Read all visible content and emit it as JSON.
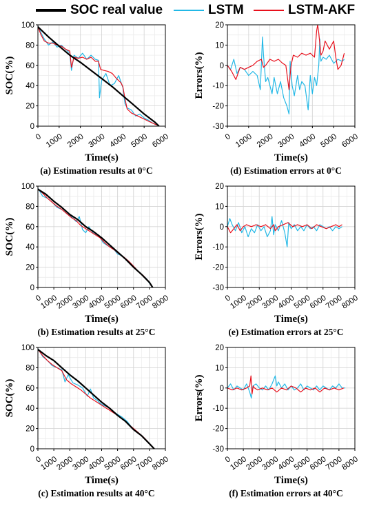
{
  "legend": {
    "items": [
      {
        "label": "SOC real value",
        "color": "#000000"
      },
      {
        "label": "LSTM",
        "color": "#22b8e6"
      },
      {
        "label": "LSTM-AKF",
        "color": "#e8101c"
      }
    ]
  },
  "chart_data": [
    {
      "type": "line",
      "panel": "soc",
      "xlabel": "Time(s)",
      "ylabel": "SOC(%)",
      "caption": "(a) Estimation results at 0°C",
      "xlim": [
        0,
        6000
      ],
      "ylim": [
        0,
        100
      ],
      "xticks": [
        0,
        1000,
        2000,
        3000,
        4000,
        5000,
        6000
      ],
      "yticks": [
        0,
        20,
        40,
        60,
        80,
        100
      ],
      "grid": true,
      "series": [
        {
          "name": "SOC real value",
          "x": [
            0,
            500,
            1000,
            1500,
            2000,
            2500,
            3000,
            3500,
            4000,
            4500,
            5000,
            5500,
            5700
          ],
          "y": [
            98,
            88,
            79,
            70,
            63,
            55,
            47,
            39,
            30,
            21,
            12,
            4,
            0
          ]
        },
        {
          "name": "LSTM",
          "x": [
            0,
            150,
            300,
            500,
            700,
            900,
            1100,
            1300,
            1500,
            1580,
            1700,
            1900,
            2100,
            2300,
            2500,
            2700,
            2850,
            2900,
            3000,
            3200,
            3400,
            3600,
            3800,
            4000,
            4100,
            4200,
            4400,
            4600,
            4800,
            5000,
            5200,
            5400,
            5600
          ],
          "y": [
            99,
            92,
            86,
            80,
            83,
            78,
            80,
            76,
            72,
            55,
            70,
            67,
            72,
            66,
            70,
            66,
            65,
            28,
            45,
            52,
            40,
            42,
            50,
            38,
            22,
            18,
            16,
            10,
            12,
            8,
            6,
            3,
            1
          ]
        },
        {
          "name": "LSTM-AKF",
          "x": [
            0,
            150,
            300,
            500,
            700,
            900,
            1100,
            1300,
            1500,
            1580,
            1700,
            1900,
            2100,
            2300,
            2500,
            2700,
            2850,
            2950,
            3100,
            3300,
            3500,
            3700,
            3900,
            4000,
            4100,
            4200,
            4400,
            4600,
            4800,
            5000,
            5200,
            5400,
            5600
          ],
          "y": [
            98,
            90,
            84,
            82,
            82,
            80,
            79,
            76,
            74,
            58,
            68,
            67,
            68,
            66,
            68,
            64,
            64,
            56,
            55,
            54,
            52,
            47,
            43,
            39,
            27,
            17,
            13,
            11,
            9,
            7,
            5,
            3,
            1
          ]
        }
      ]
    },
    {
      "type": "line",
      "panel": "err",
      "xlabel": "Time(s)",
      "ylabel": "Errors(%)",
      "caption": "(d) Estimation errors at 0°C",
      "xlim": [
        0,
        6000
      ],
      "ylim": [
        -30,
        20
      ],
      "xticks": [
        0,
        1000,
        2000,
        3000,
        4000,
        5000,
        6000
      ],
      "yticks": [
        -30,
        -20,
        -10,
        0,
        10,
        20
      ],
      "grid": true,
      "series": [
        {
          "name": "LSTM",
          "x": [
            0,
            150,
            300,
            450,
            600,
            800,
            1000,
            1200,
            1400,
            1550,
            1650,
            1700,
            1800,
            1900,
            2000,
            2100,
            2200,
            2350,
            2500,
            2650,
            2800,
            2900,
            2950,
            3050,
            3150,
            3300,
            3400,
            3500,
            3650,
            3800,
            3900,
            4000,
            4100,
            4200,
            4300,
            4350,
            4400,
            4500,
            4650,
            4800,
            5000,
            5200,
            5400,
            5500
          ],
          "y": [
            0,
            -2,
            3,
            -4,
            -1,
            -2,
            -5,
            -3,
            -5,
            -12,
            14,
            5,
            -8,
            -6,
            -10,
            -14,
            -6,
            -14,
            -8,
            -16,
            -20,
            -24,
            2,
            -10,
            -15,
            -5,
            -12,
            -8,
            -10,
            -22,
            -5,
            -14,
            -6,
            -10,
            0,
            13,
            2,
            4,
            3,
            5,
            1,
            3,
            2,
            3
          ]
        },
        {
          "name": "LSTM-AKF",
          "x": [
            0,
            200,
            400,
            600,
            800,
            1000,
            1200,
            1400,
            1600,
            1700,
            1800,
            2000,
            2200,
            2400,
            2600,
            2750,
            2850,
            2900,
            2950,
            3000,
            3100,
            3300,
            3500,
            3700,
            3900,
            4100,
            4200,
            4250,
            4300,
            4400,
            4500,
            4600,
            4800,
            5000,
            5100,
            5200,
            5350,
            5500
          ],
          "y": [
            0,
            -3,
            -7,
            -1,
            -2,
            -1,
            0,
            2,
            3,
            -1,
            0,
            3,
            2,
            3,
            1,
            0,
            -8,
            -12,
            -5,
            0,
            5,
            4,
            6,
            5,
            6,
            4,
            17,
            20,
            16,
            5,
            7,
            12,
            8,
            12,
            4,
            -2,
            0,
            6
          ]
        }
      ]
    },
    {
      "type": "line",
      "panel": "soc",
      "xlabel": "Time(s)",
      "ylabel": "SOC(%)",
      "caption": "(b) Estimation results at 25°C",
      "xlim": [
        0,
        8000
      ],
      "ylim": [
        0,
        100
      ],
      "xticks": [
        0,
        1000,
        2000,
        3000,
        4000,
        5000,
        6000,
        7000,
        8000
      ],
      "yticks": [
        0,
        20,
        40,
        60,
        80,
        100
      ],
      "grid": true,
      "series": [
        {
          "name": "SOC real value",
          "x": [
            0,
            500,
            1000,
            1500,
            2000,
            2500,
            3000,
            3500,
            4000,
            4500,
            5000,
            5500,
            6000,
            6500,
            7000,
            7200
          ],
          "y": [
            97,
            92,
            85,
            79,
            72,
            67,
            60,
            55,
            49,
            42,
            35,
            28,
            20,
            13,
            5,
            0
          ]
        },
        {
          "name": "LSTM",
          "x": [
            0,
            300,
            600,
            900,
            1200,
            1500,
            1800,
            2100,
            2400,
            2600,
            2800,
            3000,
            3200,
            3500,
            3800,
            4100,
            4400,
            4700,
            5000,
            5300,
            5600,
            5900,
            6200,
            6500,
            6800,
            7000,
            7200
          ],
          "y": [
            98,
            90,
            88,
            84,
            79,
            77,
            73,
            70,
            65,
            70,
            57,
            54,
            60,
            53,
            52,
            44,
            41,
            39,
            33,
            31,
            26,
            22,
            17,
            13,
            9,
            4,
            0
          ]
        },
        {
          "name": "LSTM-AKF",
          "x": [
            0,
            300,
            600,
            900,
            1200,
            1500,
            1800,
            2100,
            2400,
            2700,
            3000,
            3300,
            3600,
            3900,
            4200,
            4500,
            4800,
            5100,
            5400,
            5700,
            6000,
            6300,
            6600,
            6900,
            7100,
            7200
          ],
          "y": [
            97,
            93,
            88,
            84,
            80,
            77,
            73,
            69,
            66,
            61,
            58,
            55,
            52,
            49,
            44,
            40,
            37,
            33,
            30,
            26,
            21,
            16,
            12,
            7,
            2,
            0
          ]
        }
      ]
    },
    {
      "type": "line",
      "panel": "err",
      "xlabel": "Time(s)",
      "ylabel": "Errors(%)",
      "caption": "(e) Estimation errors at 25°C",
      "xlim": [
        0,
        8000
      ],
      "ylim": [
        -30,
        20
      ],
      "xticks": [
        0,
        1000,
        2000,
        3000,
        4000,
        5000,
        6000,
        7000,
        8000
      ],
      "yticks": [
        -30,
        -20,
        -10,
        0,
        10,
        20
      ],
      "grid": true,
      "series": [
        {
          "name": "LSTM",
          "x": [
            0,
            150,
            300,
            500,
            700,
            900,
            1100,
            1300,
            1500,
            1700,
            1900,
            2100,
            2300,
            2500,
            2700,
            2800,
            2900,
            3000,
            3200,
            3400,
            3600,
            3750,
            3850,
            4000,
            4200,
            4400,
            4600,
            4800,
            5000,
            5200,
            5400,
            5600,
            5800,
            6000,
            6200,
            6400,
            6600,
            6800,
            7000,
            7200
          ],
          "y": [
            0,
            4,
            1,
            -2,
            2,
            -3,
            0,
            -5,
            -1,
            -3,
            1,
            -2,
            0,
            -5,
            -2,
            5,
            -4,
            1,
            -2,
            3,
            -3,
            -10,
            2,
            -1,
            1,
            -2,
            0,
            -2,
            1,
            -1,
            0,
            -2,
            1,
            0,
            -1,
            0,
            -2,
            0,
            -1,
            0
          ]
        },
        {
          "name": "LSTM-AKF",
          "x": [
            0,
            200,
            400,
            600,
            800,
            1000,
            1200,
            1500,
            1800,
            2100,
            2400,
            2700,
            2900,
            3000,
            3200,
            3500,
            3800,
            4100,
            4400,
            4700,
            5000,
            5300,
            5600,
            5900,
            6200,
            6500,
            6800,
            7000,
            7200
          ],
          "y": [
            0,
            -3,
            -1,
            1,
            -2,
            0,
            1,
            0,
            1,
            0,
            1,
            -1,
            1,
            -2,
            0,
            1,
            2,
            0,
            1,
            0,
            1,
            -1,
            1,
            0,
            -1,
            0,
            1,
            0,
            1
          ]
        }
      ]
    },
    {
      "type": "line",
      "panel": "soc",
      "xlabel": "Time(s)",
      "ylabel": "SOC(%)",
      "caption": "(c) Estimation results at 40°C",
      "xlim": [
        0,
        8000
      ],
      "ylim": [
        0,
        100
      ],
      "xticks": [
        0,
        1000,
        2000,
        3000,
        4000,
        5000,
        6000,
        7000,
        8000
      ],
      "yticks": [
        0,
        20,
        40,
        60,
        80,
        100
      ],
      "grid": true,
      "series": [
        {
          "name": "SOC real value",
          "x": [
            0,
            500,
            1000,
            1500,
            2000,
            2500,
            3000,
            3500,
            4000,
            4500,
            5000,
            5500,
            6000,
            6500,
            7000,
            7300
          ],
          "y": [
            98,
            92,
            87,
            80,
            73,
            67,
            60,
            53,
            46,
            40,
            33,
            27,
            19,
            13,
            5,
            0
          ]
        },
        {
          "name": "LSTM",
          "x": [
            0,
            300,
            600,
            900,
            1200,
            1500,
            1700,
            1900,
            2200,
            2500,
            2800,
            3100,
            3300,
            3500,
            3700,
            3900,
            4100,
            4400,
            4700,
            5000,
            5300,
            5600,
            5900,
            6200,
            6500,
            6800,
            7100,
            7300
          ],
          "y": [
            99,
            91,
            87,
            82,
            80,
            78,
            66,
            73,
            65,
            63,
            60,
            52,
            59,
            50,
            48,
            45,
            43,
            41,
            37,
            34,
            31,
            27,
            21,
            17,
            13,
            8,
            3,
            0
          ]
        },
        {
          "name": "LSTM-AKF",
          "x": [
            0,
            300,
            600,
            900,
            1200,
            1500,
            1700,
            1800,
            2100,
            2400,
            2700,
            3000,
            3300,
            3600,
            3900,
            4200,
            4500,
            4800,
            5100,
            5400,
            5700,
            6000,
            6300,
            6600,
            6900,
            7100,
            7300
          ],
          "y": [
            98,
            92,
            87,
            83,
            80,
            77,
            71,
            68,
            64,
            61,
            58,
            54,
            50,
            47,
            44,
            41,
            38,
            35,
            32,
            28,
            24,
            20,
            16,
            12,
            7,
            3,
            0
          ]
        }
      ]
    },
    {
      "type": "line",
      "panel": "err",
      "xlabel": "Time(s)",
      "ylabel": "Errors(%)",
      "caption": "(f) Estimation errors at 40°C",
      "xlim": [
        0,
        8000
      ],
      "ylim": [
        -30,
        20
      ],
      "xticks": [
        0,
        1000,
        2000,
        3000,
        4000,
        5000,
        6000,
        7000,
        8000
      ],
      "yticks": [
        -30,
        -20,
        -10,
        0,
        10,
        20
      ],
      "grid": true,
      "series": [
        {
          "name": "LSTM",
          "x": [
            0,
            200,
            400,
            600,
            800,
            1000,
            1200,
            1400,
            1500,
            1600,
            1800,
            2000,
            2200,
            2400,
            2600,
            2800,
            3000,
            3100,
            3200,
            3400,
            3600,
            3800,
            4000,
            4200,
            4400,
            4600,
            4800,
            5000,
            5200,
            5400,
            5600,
            5800,
            6000,
            6200,
            6400,
            6600,
            6800,
            7000,
            7200,
            7400
          ],
          "y": [
            0,
            2,
            -1,
            1,
            0,
            -1,
            2,
            -2,
            -5,
            1,
            2,
            0,
            -1,
            1,
            -1,
            2,
            6,
            1,
            3,
            0,
            2,
            -1,
            1,
            -1,
            0,
            2,
            -1,
            1,
            0,
            -1,
            1,
            -1,
            1,
            0,
            -1,
            1,
            0,
            2,
            0,
            0
          ]
        },
        {
          "name": "LSTM-AKF",
          "x": [
            0,
            300,
            600,
            900,
            1200,
            1400,
            1480,
            1550,
            1620,
            1700,
            1900,
            2200,
            2500,
            2800,
            3100,
            3400,
            3700,
            4000,
            4300,
            4600,
            4900,
            5200,
            5500,
            5800,
            6100,
            6400,
            6700,
            7000,
            7300
          ],
          "y": [
            0,
            -1,
            0,
            -1,
            0,
            1,
            6,
            -3,
            1,
            0,
            -1,
            0,
            -1,
            0,
            -2,
            0,
            -1,
            1,
            0,
            -2,
            0,
            -1,
            0,
            -2,
            0,
            -1,
            0,
            -1,
            0
          ]
        }
      ]
    }
  ]
}
